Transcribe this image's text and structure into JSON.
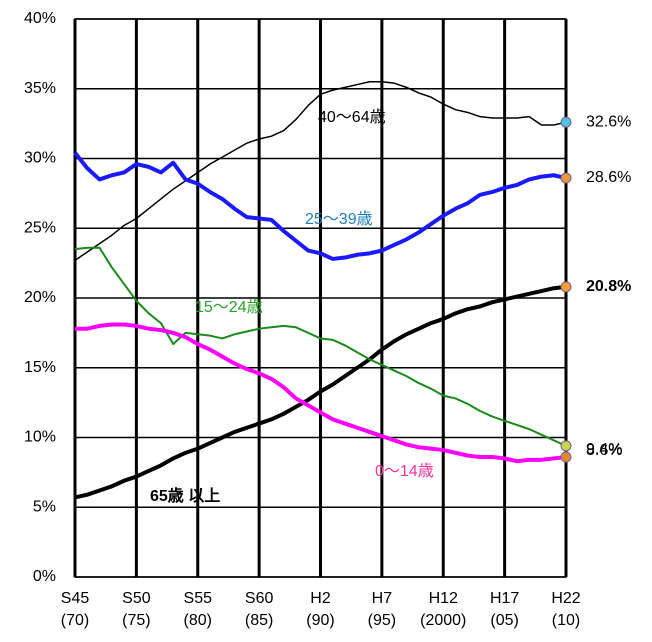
{
  "chart_data": {
    "type": "line",
    "categories": [
      "S45\n(70)",
      null,
      null,
      null,
      null,
      "S50\n(75)",
      null,
      null,
      null,
      null,
      "S55\n(80)",
      null,
      null,
      null,
      null,
      "S60\n(85)",
      null,
      null,
      null,
      null,
      "H2\n(90)",
      null,
      null,
      null,
      null,
      "H7\n(95)",
      null,
      null,
      null,
      null,
      "H12\n(2000)",
      null,
      null,
      null,
      null,
      "H17\n(05)",
      null,
      null,
      null,
      null,
      "H22\n(10)"
    ],
    "ylim": [
      0,
      40
    ],
    "yticks": [
      {
        "value": 0,
        "label": "0%"
      },
      {
        "value": 5,
        "label": "5%"
      },
      {
        "value": 10,
        "label": "10%"
      },
      {
        "value": 15,
        "label": "15%"
      },
      {
        "value": 20,
        "label": "20%"
      },
      {
        "value": 25,
        "label": "25%"
      },
      {
        "value": 30,
        "label": "30%"
      },
      {
        "value": 35,
        "label": "35%"
      },
      {
        "value": 40,
        "label": "40%"
      }
    ],
    "grid": true,
    "series": [
      {
        "name": "40～64歳",
        "color": "#000000",
        "label_color": "#000000",
        "marker_color": "#4fc3d8",
        "values": [
          22.7,
          23.3,
          23.9,
          24.5,
          25.2,
          25.7,
          26.4,
          27.1,
          27.8,
          28.4,
          29.0,
          29.6,
          30.1,
          30.6,
          31.1,
          31.4,
          31.6,
          32.0,
          32.8,
          33.8,
          34.6,
          34.9,
          35.1,
          35.3,
          35.5,
          35.5,
          35.4,
          35.1,
          34.7,
          34.4,
          33.9,
          33.5,
          33.3,
          33.0,
          32.9,
          32.9,
          32.9,
          33.0,
          32.4,
          32.4,
          32.6
        ],
        "value_labels": [
          null,
          null,
          null,
          null,
          null,
          null,
          null,
          null,
          null,
          null,
          null,
          null,
          null,
          null,
          null,
          null,
          null,
          null,
          null,
          null,
          null,
          null,
          null,
          null,
          null,
          null,
          null,
          null,
          null,
          null,
          null,
          null,
          null,
          null,
          null,
          null,
          null,
          null,
          null,
          null,
          "32.6%"
        ]
      },
      {
        "name": "25～39歳",
        "color": "#1a1aff",
        "label_color": "#1f7fc0",
        "marker_color": "#e69a3a",
        "values": [
          30.4,
          29.3,
          28.5,
          28.8,
          29.0,
          29.6,
          29.4,
          29.0,
          29.7,
          28.5,
          28.2,
          27.6,
          27.1,
          26.4,
          25.8,
          25.7,
          25.6,
          24.8,
          24.1,
          23.4,
          23.2,
          22.8,
          22.9,
          23.1,
          23.2,
          23.4,
          23.8,
          24.2,
          24.7,
          25.3,
          25.9,
          26.4,
          26.8,
          27.4,
          27.6,
          27.9,
          28.1,
          28.5,
          28.7,
          28.8,
          28.6
        ],
        "value_labels": [
          null,
          null,
          null,
          null,
          null,
          null,
          null,
          null,
          null,
          null,
          null,
          null,
          null,
          null,
          null,
          null,
          null,
          null,
          null,
          null,
          null,
          null,
          null,
          null,
          null,
          null,
          null,
          null,
          null,
          null,
          null,
          null,
          null,
          null,
          null,
          null,
          null,
          null,
          null,
          null,
          "28.6%"
        ]
      },
      {
        "name": "65歳 以上",
        "color": "#000000",
        "label_color": "#000000",
        "marker_color": "#f0a030",
        "values": [
          5.7,
          5.9,
          6.2,
          6.5,
          6.9,
          7.2,
          7.6,
          8.0,
          8.5,
          8.9,
          9.2,
          9.6,
          10.0,
          10.4,
          10.7,
          11.0,
          11.3,
          11.7,
          12.2,
          12.7,
          13.3,
          13.8,
          14.4,
          15.0,
          15.6,
          16.3,
          16.9,
          17.4,
          17.8,
          18.2,
          18.5,
          18.9,
          19.2,
          19.4,
          19.7,
          19.9,
          20.1,
          20.3,
          20.5,
          20.7,
          20.8
        ],
        "value_labels": [
          null,
          null,
          null,
          null,
          null,
          null,
          null,
          null,
          null,
          null,
          null,
          null,
          null,
          null,
          null,
          null,
          null,
          null,
          null,
          null,
          null,
          null,
          null,
          null,
          null,
          null,
          null,
          null,
          null,
          null,
          null,
          null,
          null,
          null,
          null,
          null,
          null,
          null,
          null,
          null,
          "20.8%"
        ]
      },
      {
        "name": "15～24歳",
        "color": "#1a8a1a",
        "label_color": "#2aa02a",
        "marker_color": "#c8d84a",
        "values": [
          23.5,
          23.6,
          23.6,
          22.2,
          21.0,
          19.8,
          18.9,
          18.2,
          16.7,
          17.5,
          17.4,
          17.3,
          17.1,
          17.4,
          17.6,
          17.8,
          17.9,
          18.0,
          17.9,
          17.5,
          17.1,
          17.0,
          16.6,
          16.1,
          15.6,
          15.2,
          14.8,
          14.4,
          13.9,
          13.5,
          13.0,
          12.8,
          12.4,
          11.9,
          11.5,
          11.2,
          10.9,
          10.6,
          10.2,
          9.8,
          9.4
        ],
        "value_labels": [
          null,
          null,
          null,
          null,
          null,
          null,
          null,
          null,
          null,
          null,
          null,
          null,
          null,
          null,
          null,
          null,
          null,
          null,
          null,
          null,
          null,
          null,
          null,
          null,
          null,
          null,
          null,
          null,
          null,
          null,
          null,
          null,
          null,
          null,
          null,
          null,
          null,
          null,
          null,
          null,
          "9.4%"
        ]
      },
      {
        "name": "0～14歳",
        "color": "#ff00ff",
        "label_color": "#ff3399",
        "marker_color": "#e08a30",
        "values": [
          17.8,
          17.8,
          18.0,
          18.1,
          18.1,
          18.0,
          17.8,
          17.7,
          17.5,
          17.2,
          16.7,
          16.3,
          15.8,
          15.3,
          14.9,
          14.6,
          14.2,
          13.6,
          12.8,
          12.3,
          11.8,
          11.3,
          11.0,
          10.7,
          10.4,
          10.1,
          9.8,
          9.5,
          9.3,
          9.2,
          9.1,
          8.9,
          8.7,
          8.6,
          8.6,
          8.5,
          8.3,
          8.4,
          8.4,
          8.5,
          8.6
        ],
        "value_labels": [
          null,
          null,
          null,
          null,
          null,
          null,
          null,
          null,
          null,
          null,
          null,
          null,
          null,
          null,
          null,
          null,
          null,
          null,
          null,
          null,
          null,
          null,
          null,
          null,
          null,
          null,
          null,
          null,
          null,
          null,
          null,
          null,
          null,
          null,
          null,
          null,
          null,
          null,
          null,
          null,
          "8.6%"
        ]
      }
    ]
  }
}
